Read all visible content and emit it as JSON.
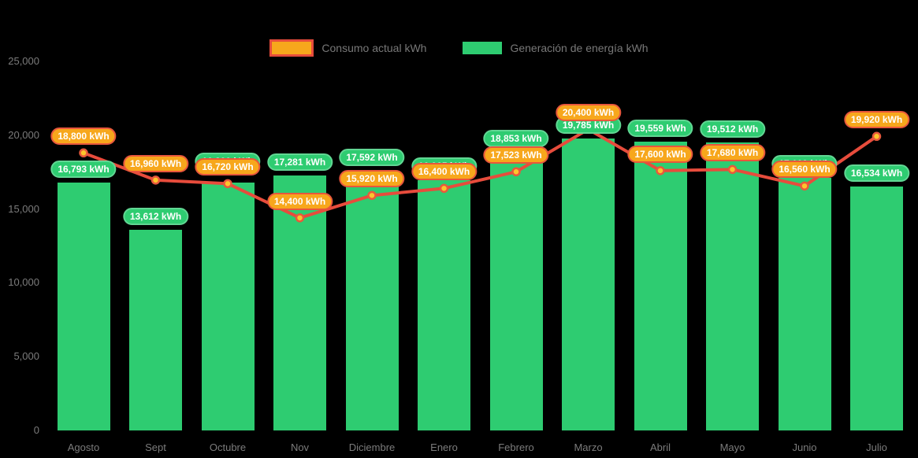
{
  "chart_data": {
    "type": "combo-bar-line",
    "title": "",
    "categories": [
      "Agosto",
      "Sept",
      "Octubre",
      "Nov",
      "Diciembre",
      "Enero",
      "Febrero",
      "Marzo",
      "Abril",
      "Mayo",
      "Junio",
      "Julio"
    ],
    "y_axis": {
      "min": 0,
      "max": 25000,
      "tick_step": 5000,
      "ticks": [
        "0",
        "5,000",
        "10,000",
        "15,000",
        "20,000",
        "25,000"
      ],
      "grid": false
    },
    "legend_position": "top",
    "series": [
      {
        "name": "Consumo actual kWh",
        "type": "line",
        "values": [
          18800,
          16960,
          16720,
          14400,
          15920,
          16400,
          17523,
          20400,
          17600,
          17680,
          16560,
          19920
        ],
        "labels": [
          "18,800 kWh",
          "16,960 kWh",
          "16,720 kWh",
          "14,400 kWh",
          "15,920 kWh",
          "16,400 kWh",
          "17,523 kWh",
          "20,400 kWh",
          "17,600 kWh",
          "17,680 kWh",
          "16,560 kWh",
          "19,920 kWh"
        ]
      },
      {
        "name": "Generación de energía kWh",
        "type": "bar",
        "values": [
          16793,
          13612,
          16800,
          17281,
          17592,
          16965,
          18853,
          19785,
          19559,
          19512,
          17109,
          16534
        ],
        "labels": [
          "16,793 kWh",
          "13,612 kWh",
          "16,800 kWh",
          "17,281 kWh",
          "17,592 kWh",
          "16,965 kWh",
          "18,853 kWh",
          "19,785 kWh",
          "19,559 kWh",
          "19,512 kWh",
          "17,109 kWh",
          "16,534 kWh"
        ],
        "label_covered": [
          false,
          false,
          true,
          false,
          false,
          false,
          false,
          false,
          false,
          false,
          false,
          false
        ]
      }
    ]
  },
  "legend": {
    "items": [
      {
        "label": "Consumo actual kWh"
      },
      {
        "label": "Generación de energía kWh"
      }
    ]
  },
  "colors": {
    "background": "#000000",
    "bar_green": "#2ecc71",
    "green_pill_bg": "#2ecc71",
    "green_pill_border": "#61d693",
    "orange_pill_bg": "#f7a71c",
    "orange_pill_border": "#e8563c",
    "line_red": "#e74c3c",
    "point_fill": "#fdc52c",
    "point_border": "#e8593c",
    "axis_text": "#7b7b7b",
    "legend_text": "#787878"
  }
}
